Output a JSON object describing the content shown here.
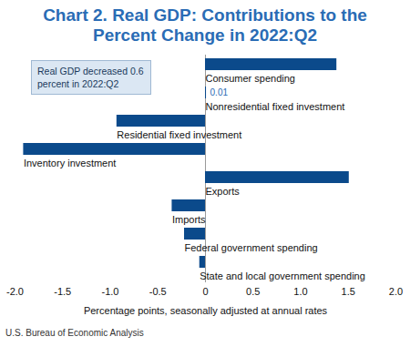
{
  "chart_data": {
    "type": "bar",
    "orientation": "horizontal",
    "title": "Chart 2. Real GDP: Contributions to the Percent Change in 2022:Q2",
    "annotation": "Real GDP decreased 0.6 percent in 2022:Q2",
    "categories": [
      "Consumer spending",
      "Nonresidential fixed investment",
      "Residential fixed investment",
      "Inventory investment",
      "Exports",
      "Imports",
      "Federal government spending",
      "State and local government spending"
    ],
    "values": [
      1.38,
      0.01,
      -0.93,
      -1.91,
      1.51,
      -0.35,
      -0.22,
      -0.06
    ],
    "value_labels": [
      null,
      "0.01",
      null,
      null,
      null,
      null,
      null,
      null
    ],
    "color": "#0b4a8b",
    "xlabel": "Percentage points, seasonally adjusted at annual rates",
    "xlim": [
      -2,
      2
    ],
    "xticks": [
      {
        "value": -2,
        "label": "-2.0"
      },
      {
        "value": -1.5,
        "label": "-1.5"
      },
      {
        "value": -1,
        "label": "-1.0"
      },
      {
        "value": -0.5,
        "label": "-0.5"
      },
      0,
      0.5,
      {
        "value": 1,
        "label": "1.0"
      },
      {
        "value": 1.5,
        "label": "1.5"
      },
      {
        "value": 2,
        "label": "2.0"
      }
    ],
    "grid": false,
    "source": "U.S. Bureau of Economic Analysis"
  }
}
